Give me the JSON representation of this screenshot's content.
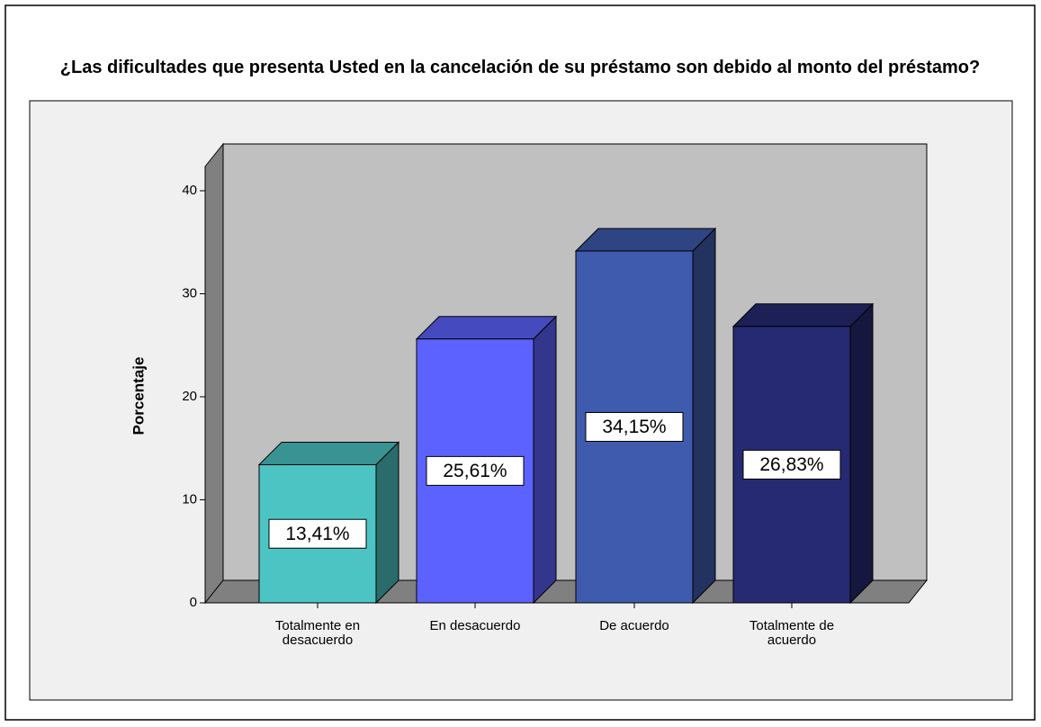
{
  "chart_data": {
    "type": "bar3d",
    "title": "¿Las dificultades que presenta Usted en la cancelación de su préstamo son debido al monto del préstamo?",
    "y_label": "Porcentaje",
    "categories": [
      "Totalmente en desacuerdo",
      "En desacuerdo",
      "De acuerdo",
      "Totalmente de acuerdo"
    ],
    "values": [
      13.41,
      25.61,
      34.15,
      26.83
    ],
    "value_labels": [
      "13,41%",
      "25,61%",
      "34,15%",
      "26,83%"
    ],
    "colors": [
      "#4dc4c4",
      "#5c62ff",
      "#3f5bad",
      "#262a72"
    ],
    "ylim": [
      0,
      40
    ],
    "yticks": [
      0,
      10,
      20,
      30,
      40
    ]
  }
}
